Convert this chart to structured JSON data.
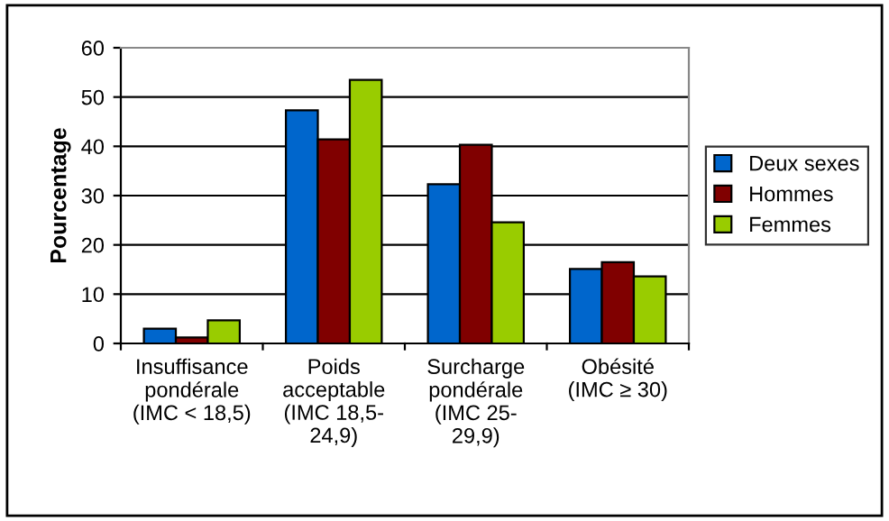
{
  "chart_data": {
    "type": "bar",
    "ylabel": "Pourcentage",
    "categories": [
      "Insuffisance\npondérale\n(IMC < 18,5)",
      "Poids\nacceptable\n(IMC 18,5-\n24,9)",
      "Surcharge\npondérale\n(IMC 25-\n29,9)",
      "Obésité\n(IMC ≥ 30)"
    ],
    "series": [
      {
        "name": "Deux sexes",
        "color": "#0066cc",
        "values": [
          3.0,
          47.3,
          32.3,
          15.1
        ]
      },
      {
        "name": "Hommes",
        "color": "#800000",
        "values": [
          1.2,
          41.4,
          40.3,
          16.5
        ]
      },
      {
        "name": "Femmes",
        "color": "#99cc00",
        "values": [
          4.7,
          53.5,
          24.6,
          13.6
        ]
      }
    ],
    "ylim": [
      0,
      60
    ],
    "yticks": [
      0,
      10,
      20,
      30,
      40,
      50,
      60
    ],
    "grid": "y",
    "legend": "right"
  }
}
